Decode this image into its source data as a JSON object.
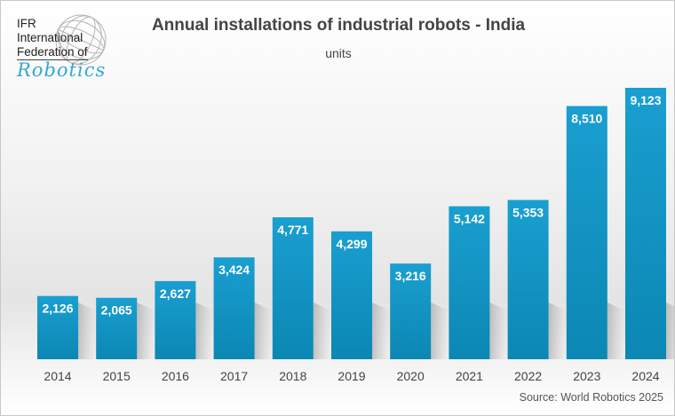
{
  "logo": {
    "line1": "IFR",
    "line2": "International",
    "line3": "Federation of",
    "line4": "Robotics"
  },
  "chart_data": {
    "type": "bar",
    "title": "Annual installations of industrial robots - India",
    "subtitle": "units",
    "xlabel": "",
    "ylabel": "units",
    "categories": [
      "2014",
      "2015",
      "2016",
      "2017",
      "2018",
      "2019",
      "2020",
      "2021",
      "2022",
      "2023",
      "2024"
    ],
    "values": [
      2126,
      2065,
      2627,
      3424,
      4771,
      4299,
      3216,
      5142,
      5353,
      8510,
      9123
    ],
    "value_labels": [
      "2,126",
      "2,065",
      "2,627",
      "3,424",
      "4,771",
      "4,299",
      "3,216",
      "5,142",
      "5,353",
      "8,510",
      "9,123"
    ],
    "ylim": [
      0,
      9123
    ],
    "grid": false,
    "bar_color": "#0e94c4",
    "label_color": "#ffffff",
    "source": "Source: World Robotics 2025"
  }
}
